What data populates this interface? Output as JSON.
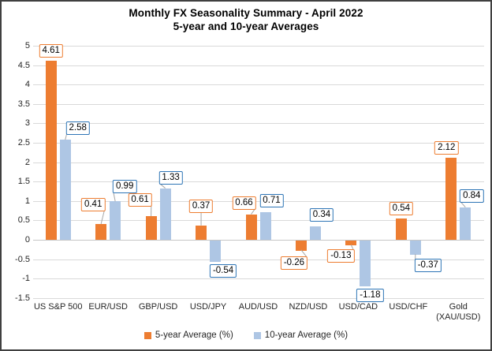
{
  "title": "Monthly FX Seasonality Summary - April 2022",
  "subtitle": "5-year and 10-year Averages",
  "colors": {
    "five_year_fill": "#ED7D31",
    "five_year_border": "#ED7D31",
    "ten_year_fill": "#AEC6E4",
    "ten_year_border": "#2E75B6",
    "gridline": "#D9D9D9",
    "leader_line": "#A6A6A6",
    "axis_text": "#262626",
    "frame_border": "#404040"
  },
  "chart_data": {
    "type": "bar",
    "title": "Monthly FX Seasonality Summary - April 2022",
    "subtitle": "5-year and 10-year Averages",
    "categories": [
      "US S&P 500",
      "EUR/USD",
      "GBP/USD",
      "USD/JPY",
      "AUD/USD",
      "NZD/USD",
      "USD/CAD",
      "USD/CHF",
      "Gold (XAU/USD)"
    ],
    "series": [
      {
        "name": "5-year Average (%)",
        "values": [
          4.61,
          0.41,
          0.61,
          0.37,
          0.66,
          -0.26,
          -0.13,
          0.54,
          2.12
        ]
      },
      {
        "name": "10-year Average (%)",
        "values": [
          2.58,
          0.99,
          1.33,
          -0.54,
          0.71,
          0.34,
          -1.18,
          -0.37,
          0.84
        ]
      }
    ],
    "ylim": [
      -1.5,
      5
    ],
    "ytick_step": 0.5,
    "yticks": [
      5,
      4.5,
      4,
      3.5,
      3,
      2.5,
      2,
      1.5,
      1,
      0.5,
      0,
      -0.5,
      -1,
      -1.5
    ],
    "grid": true,
    "data_labels": true,
    "legend_position": "bottom",
    "legend": [
      "5-year Average (%)",
      "10-year Average (%)"
    ]
  }
}
